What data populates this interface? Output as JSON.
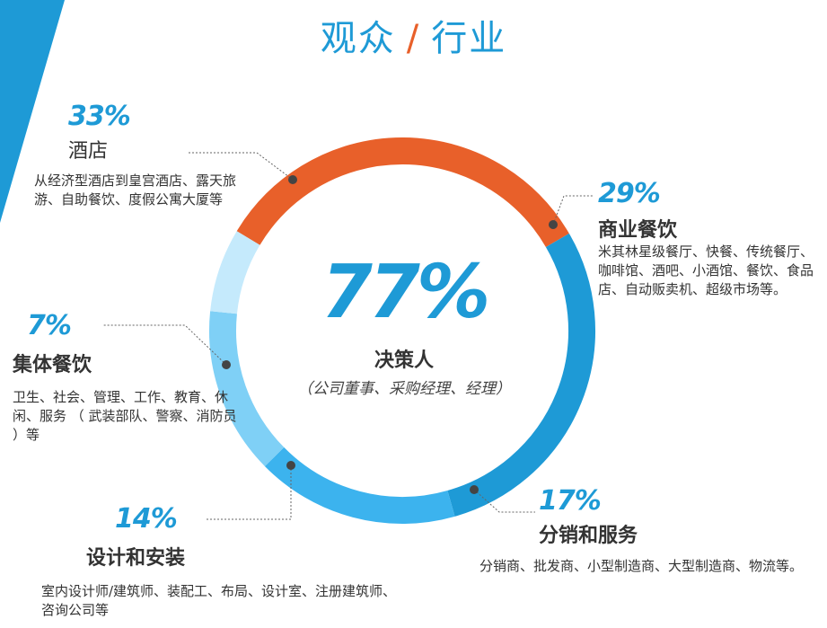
{
  "title": {
    "left": "观众",
    "sep": "/",
    "right": "行业"
  },
  "center": {
    "percent": "77%",
    "label": "决策人",
    "sublabel": "（公司董事、采购经理、经理）"
  },
  "colors": {
    "accent_blue": "#1e9ad6",
    "accent_orange": "#e8602a"
  },
  "chart_data": {
    "type": "pie",
    "style": "donut",
    "values": [
      33,
      29,
      17,
      14,
      7
    ],
    "categories": [
      "酒店",
      "商业餐饮",
      "分销和服务",
      "设计和安装",
      "集体餐饮"
    ],
    "series": [
      {
        "name": "酒店",
        "value": 33,
        "label": "33%",
        "color": "#e8602a",
        "description": "从经济型酒店到皇宫酒店、露天旅游、自助餐饮、度假公寓大厦等"
      },
      {
        "name": "商业餐饮",
        "value": 29,
        "label": "29%",
        "color": "#1e9ad6",
        "description": "米其林星级餐厅、快餐、传统餐厅、咖啡馆、酒吧、小酒馆、餐饮、食品店、自动贩卖机、超级市场等。"
      },
      {
        "name": "分销和服务",
        "value": 17,
        "label": "17%",
        "color": "#3cb3ee",
        "description": "分销商、批发商、小型制造商、大型制造商、物流等。"
      },
      {
        "name": "设计和安装",
        "value": 14,
        "label": "14%",
        "color": "#7fd0f6",
        "description": "室内设计师/建筑师、装配工、布局、设计室、注册建筑师、咨询公司等"
      },
      {
        "name": "集体餐饮",
        "value": 7,
        "label": "7%",
        "color": "#c5eafc",
        "description": "卫生、社会、管理、工作、教育、休闲、服务 （ 武装部队、警察、消防员 ）等"
      }
    ]
  }
}
